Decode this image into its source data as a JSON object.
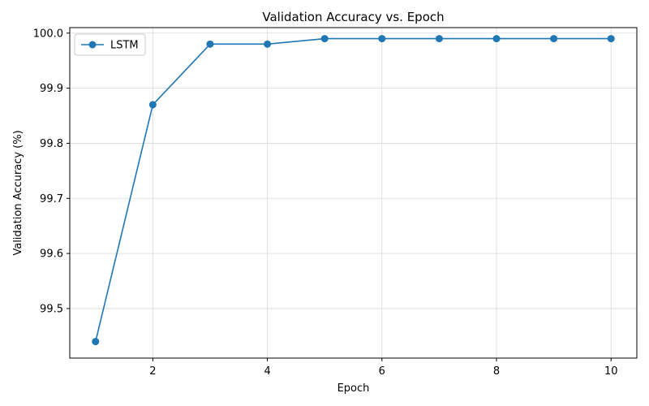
{
  "chart_data": {
    "type": "line",
    "title": "Validation Accuracy vs. Epoch",
    "xlabel": "Epoch",
    "ylabel": "Validation Accuracy (%)",
    "x": [
      1,
      2,
      3,
      4,
      5,
      6,
      7,
      8,
      9,
      10
    ],
    "series": [
      {
        "name": "LSTM",
        "color": "#1f77b4",
        "marker": "circle",
        "values": [
          99.44,
          99.87,
          99.98,
          99.98,
          99.99,
          99.99,
          99.99,
          99.99,
          99.99,
          99.99
        ]
      }
    ],
    "xlim": [
      0.55,
      10.45
    ],
    "ylim": [
      99.41,
      100.01
    ],
    "xticks": [
      2,
      4,
      6,
      8,
      10
    ],
    "xtick_labels": [
      "2",
      "4",
      "6",
      "8",
      "10"
    ],
    "yticks": [
      99.5,
      99.6,
      99.7,
      99.8,
      99.9,
      100.0
    ],
    "ytick_labels": [
      "99.5",
      "99.6",
      "99.7",
      "99.8",
      "99.9",
      "100.0"
    ],
    "grid": true,
    "legend_position": "top-left"
  }
}
